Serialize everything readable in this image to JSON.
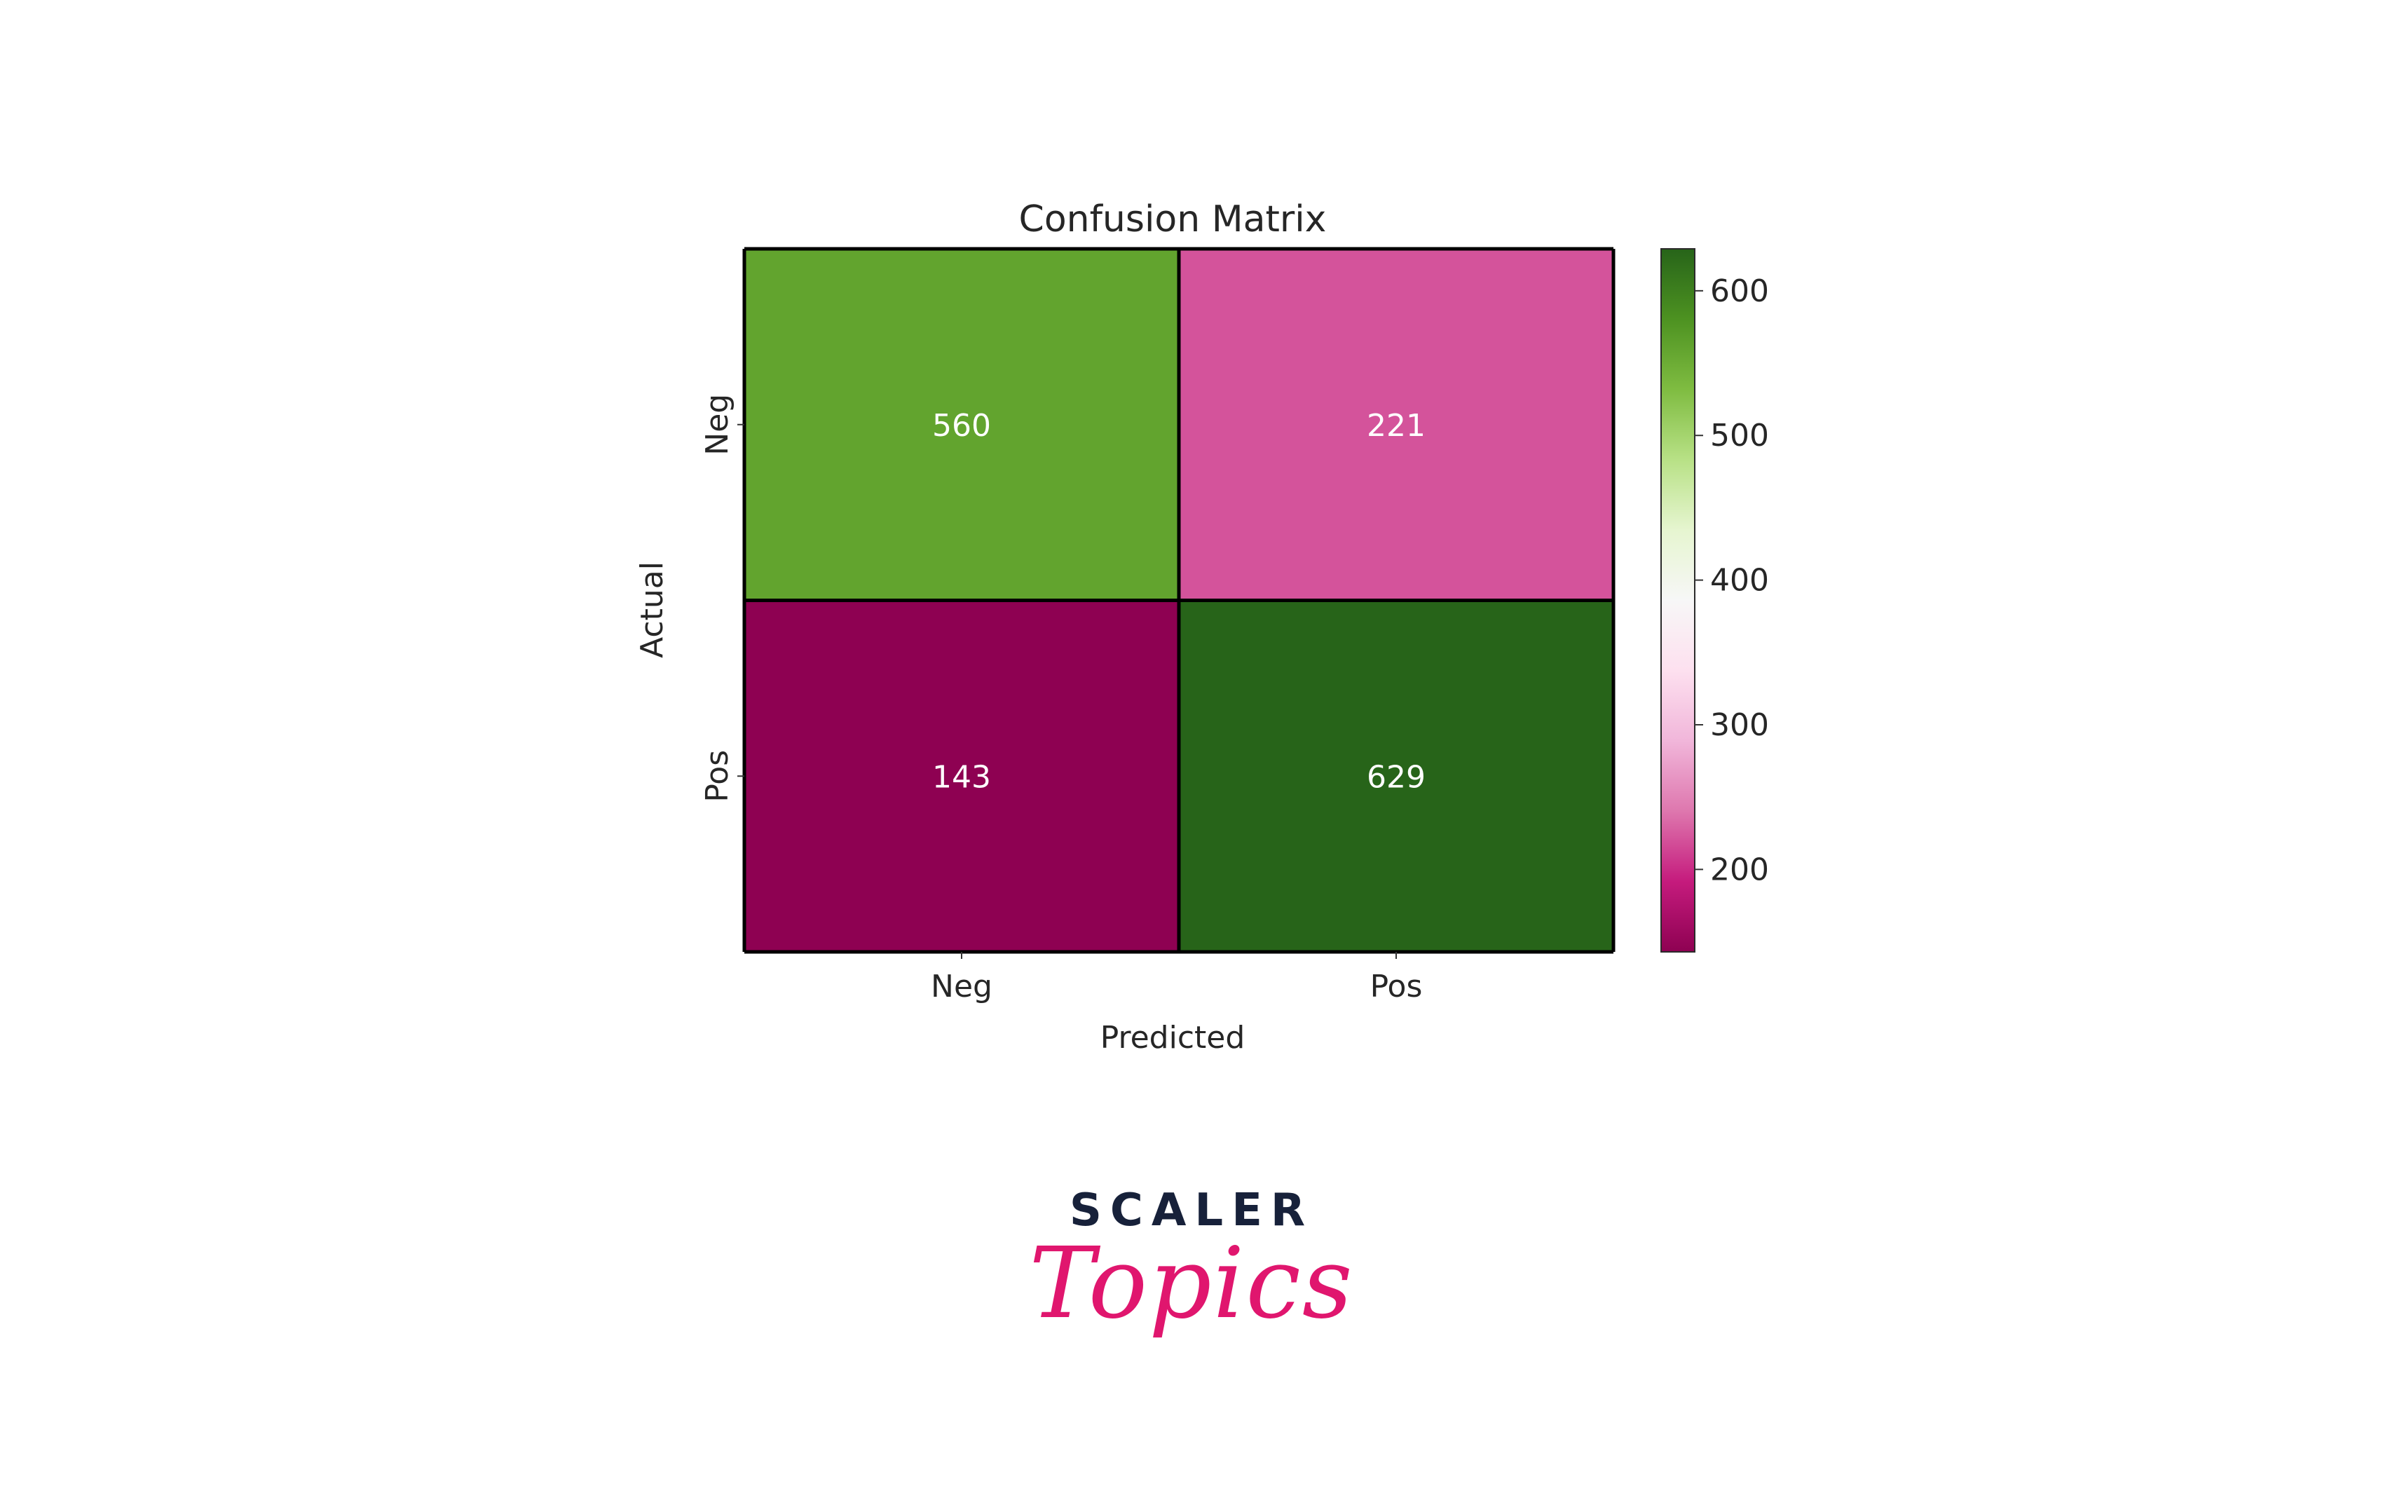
{
  "chart_data": {
    "type": "heatmap",
    "title": "Confusion Matrix",
    "xlabel": "Predicted",
    "ylabel": "Actual",
    "x_categories": [
      "Neg",
      "Pos"
    ],
    "y_categories": [
      "Neg",
      "Pos"
    ],
    "values": [
      [
        560,
        221
      ],
      [
        143,
        629
      ]
    ],
    "colormap": "PiYG",
    "colorbar": {
      "range": [
        143,
        629
      ],
      "ticks": [
        200,
        300,
        400,
        500,
        600
      ]
    },
    "cell_text_color": "#ffffff",
    "grid_line_color": "#000000"
  },
  "branding": {
    "logo_top": "SCALER",
    "logo_bottom": "Topics",
    "logo_top_color": "#17213a",
    "logo_bottom_color": "#e0166e"
  }
}
